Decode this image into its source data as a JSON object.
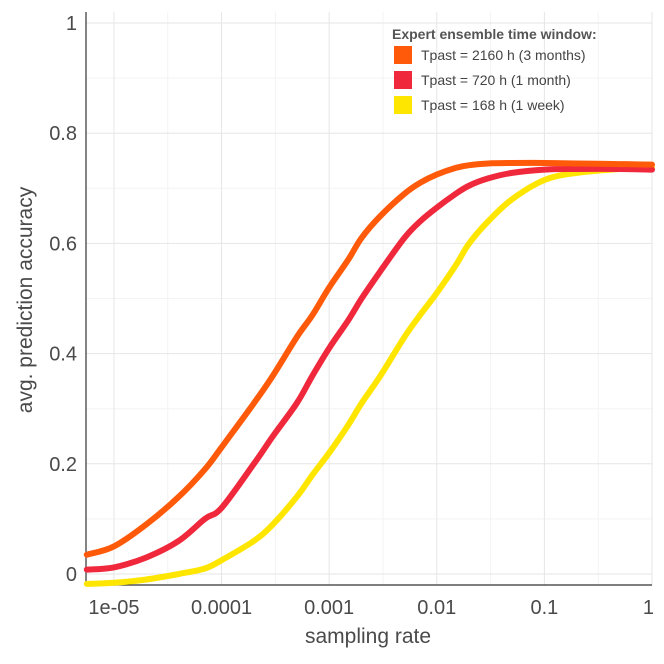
{
  "chart_data": {
    "type": "line",
    "title": "",
    "xlabel": "sampling rate",
    "ylabel": "avg. prediction accuracy",
    "xscale": "log",
    "xlim": [
      5.5e-06,
      1
    ],
    "ylim": [
      -0.02,
      1.02
    ],
    "grid": true,
    "x_ticks": [
      {
        "value": 1e-05,
        "label": "1e-05"
      },
      {
        "value": 0.0001,
        "label": "0.0001"
      },
      {
        "value": 0.001,
        "label": "0.001"
      },
      {
        "value": 0.01,
        "label": "0.01"
      },
      {
        "value": 0.1,
        "label": "0.1"
      },
      {
        "value": 1,
        "label": "1"
      }
    ],
    "y_ticks": [
      {
        "value": 0,
        "label": "0"
      },
      {
        "value": 0.2,
        "label": "0.2"
      },
      {
        "value": 0.4,
        "label": "0.4"
      },
      {
        "value": 0.6,
        "label": "0.6"
      },
      {
        "value": 0.8,
        "label": "0.8"
      },
      {
        "value": 1,
        "label": "1"
      }
    ],
    "legend": {
      "title": "Expert ensemble time window:",
      "placement": "top-right"
    },
    "series": [
      {
        "name": "Tpast = 2160 h (3 months)",
        "color": "#ff5a0a",
        "x": [
          5.6e-06,
          1e-05,
          2e-05,
          4e-05,
          7e-05,
          0.0001,
          0.0002,
          0.0003,
          0.0005,
          0.0007,
          0.001,
          0.0015,
          0.002,
          0.003,
          0.005,
          0.007,
          0.01,
          0.015,
          0.02,
          0.03,
          0.05,
          0.1,
          0.2,
          0.5,
          1
        ],
        "y": [
          0.035,
          0.05,
          0.09,
          0.14,
          0.19,
          0.23,
          0.31,
          0.36,
          0.43,
          0.47,
          0.52,
          0.57,
          0.61,
          0.65,
          0.69,
          0.71,
          0.725,
          0.737,
          0.742,
          0.745,
          0.746,
          0.746,
          0.745,
          0.744,
          0.743
        ]
      },
      {
        "name": "Tpast = 720 h (1 month)",
        "color": "#f0283c",
        "x": [
          5.6e-06,
          1e-05,
          2e-05,
          4e-05,
          7e-05,
          0.0001,
          0.0002,
          0.0003,
          0.0005,
          0.0007,
          0.001,
          0.0015,
          0.002,
          0.003,
          0.005,
          0.007,
          0.01,
          0.015,
          0.02,
          0.03,
          0.05,
          0.1,
          0.2,
          0.5,
          1
        ],
        "y": [
          0.008,
          0.012,
          0.03,
          0.06,
          0.1,
          0.12,
          0.2,
          0.25,
          0.31,
          0.36,
          0.41,
          0.46,
          0.5,
          0.55,
          0.61,
          0.64,
          0.665,
          0.69,
          0.705,
          0.718,
          0.728,
          0.734,
          0.735,
          0.735,
          0.734
        ]
      },
      {
        "name": "Tpast = 168 h (1 week)",
        "color": "#ffe600",
        "x": [
          5.6e-06,
          1e-05,
          2e-05,
          4e-05,
          7e-05,
          0.0001,
          0.0002,
          0.0003,
          0.0005,
          0.0007,
          0.001,
          0.0015,
          0.002,
          0.003,
          0.005,
          0.007,
          0.01,
          0.015,
          0.02,
          0.03,
          0.05,
          0.1,
          0.2,
          0.5,
          1
        ],
        "y": [
          -0.018,
          -0.016,
          -0.01,
          0.0,
          0.01,
          0.025,
          0.06,
          0.09,
          0.14,
          0.18,
          0.22,
          0.27,
          0.31,
          0.36,
          0.43,
          0.47,
          0.51,
          0.56,
          0.6,
          0.64,
          0.68,
          0.715,
          0.728,
          0.735,
          0.737
        ]
      }
    ]
  }
}
